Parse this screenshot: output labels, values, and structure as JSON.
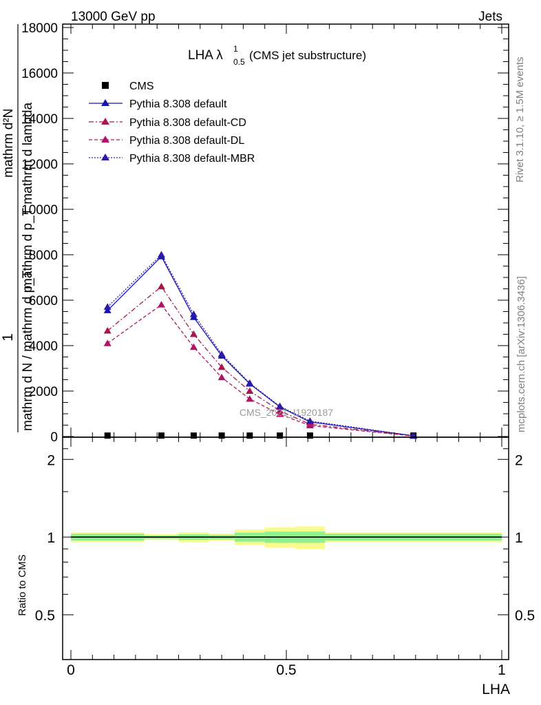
{
  "header": {
    "left": "13000 GeV pp",
    "right": "Jets"
  },
  "title": {
    "main": "LHA λ",
    "sup": "1",
    "sub": "0.5",
    "suffix": " (CMS jet substructure)"
  },
  "side_labels": {
    "rivet": "Rivet 3.1.10, ≥ 1.5M events",
    "mcplots": "mcplots.cern.ch [arXiv:1306.3436]"
  },
  "watermark": "CMS_2021_I1920187",
  "ylabel": {
    "numerator": "1",
    "lines": [
      "mathrm d N / mathrm d p_T",
      "mathrm d²N",
      "mathrm d p_T mathrm d lambda"
    ]
  },
  "ratio_ylabel": "Ratio to CMS",
  "xlabel": "LHA",
  "chart_data": [
    {
      "type": "line",
      "panel": "main",
      "title": "LHA λ^1_0.5 (CMS jet substructure)",
      "xlabel": "LHA",
      "xlim": [
        0,
        1
      ],
      "ylim": [
        0,
        18000
      ],
      "yticks": [
        0,
        2000,
        4000,
        6000,
        8000,
        10000,
        12000,
        14000,
        16000,
        18000
      ],
      "yticklabels": [
        "0",
        "2000",
        "4000",
        "6000",
        "8000",
        "10000",
        "12000",
        "14000",
        "16000",
        "18000"
      ],
      "legend_position": "top-left",
      "x": [
        0.085,
        0.21,
        0.285,
        0.35,
        0.415,
        0.485,
        0.555,
        0.795
      ],
      "series": [
        {
          "name": "CMS",
          "style": "data",
          "color": "#000000",
          "values": [
            40,
            40,
            40,
            40,
            40,
            40,
            40,
            40
          ]
        },
        {
          "name": "Pythia 8.308 default",
          "style": "solid",
          "color": "#1515b5",
          "values": [
            5550,
            7920,
            5250,
            3550,
            2320,
            1300,
            640,
            30
          ]
        },
        {
          "name": "Pythia 8.308 default-CD",
          "style": "dashdot",
          "color": "#a8154f",
          "values": [
            4650,
            6600,
            4500,
            3050,
            2000,
            1130,
            540,
            25
          ]
        },
        {
          "name": "Pythia 8.308 default-DL",
          "style": "dashed",
          "color": "#b0146a",
          "values": [
            4100,
            5800,
            3930,
            2600,
            1650,
            980,
            480,
            22
          ]
        },
        {
          "name": "Pythia 8.308 default-MBR",
          "style": "dotted",
          "color": "#2e1aa8",
          "values": [
            5700,
            8000,
            5380,
            3620,
            2350,
            1330,
            680,
            32
          ]
        }
      ]
    },
    {
      "type": "band",
      "panel": "ratio",
      "ylabel": "Ratio to CMS",
      "xlabel": "LHA",
      "xlim": [
        0,
        1
      ],
      "ylim": [
        0.35,
        2.35
      ],
      "yticks": [
        0.5,
        1,
        2
      ],
      "yticklabels": [
        "0.5",
        "1",
        "2"
      ],
      "xticks": [
        0,
        0.5,
        1
      ],
      "xticklabels": [
        "0",
        "0.5",
        "1"
      ],
      "bins": [
        {
          "x0": 0.0,
          "x1": 0.17,
          "inner": [
            0.97,
            1.03
          ],
          "outer": [
            0.955,
            1.045
          ]
        },
        {
          "x0": 0.17,
          "x1": 0.25,
          "inner": [
            0.985,
            1.015
          ],
          "outer": [
            0.975,
            1.025
          ]
        },
        {
          "x0": 0.25,
          "x1": 0.32,
          "inner": [
            0.975,
            1.025
          ],
          "outer": [
            0.955,
            1.045
          ]
        },
        {
          "x0": 0.32,
          "x1": 0.38,
          "inner": [
            0.98,
            1.02
          ],
          "outer": [
            0.97,
            1.03
          ]
        },
        {
          "x0": 0.38,
          "x1": 0.45,
          "inner": [
            0.96,
            1.04
          ],
          "outer": [
            0.93,
            1.07
          ]
        },
        {
          "x0": 0.45,
          "x1": 0.52,
          "inner": [
            0.95,
            1.05
          ],
          "outer": [
            0.91,
            1.09
          ]
        },
        {
          "x0": 0.52,
          "x1": 0.59,
          "inner": [
            0.95,
            1.05
          ],
          "outer": [
            0.9,
            1.1
          ]
        },
        {
          "x0": 0.59,
          "x1": 1.0,
          "inner": [
            0.97,
            1.03
          ],
          "outer": [
            0.955,
            1.045
          ]
        }
      ],
      "inner_color": "#8ff08f",
      "outer_color": "#fbfb8c",
      "reference_line": 1
    }
  ]
}
